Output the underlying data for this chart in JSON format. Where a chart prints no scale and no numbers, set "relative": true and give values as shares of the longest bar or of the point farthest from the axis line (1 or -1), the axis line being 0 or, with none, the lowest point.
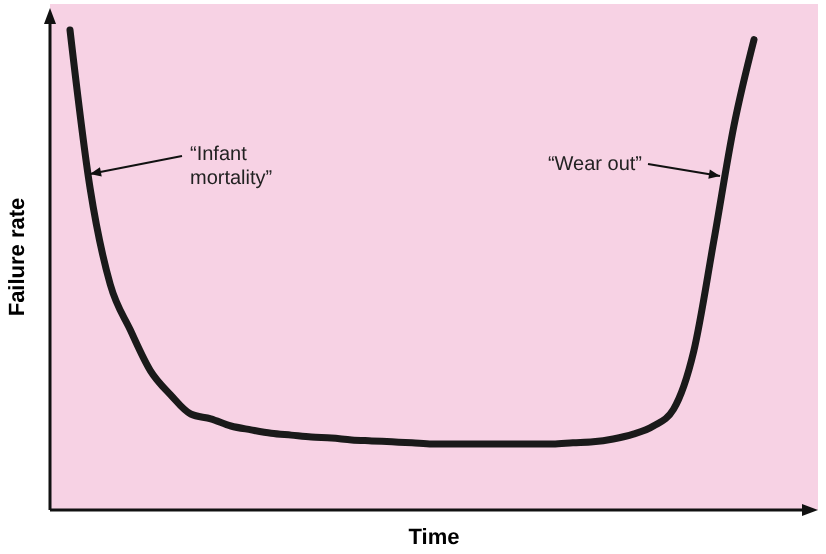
{
  "chart_data": {
    "type": "line",
    "relative": true,
    "xlabel": "Time",
    "ylabel": "Failure rate",
    "annotations": [
      "“Infant\nmortality”",
      "“Wear out”"
    ],
    "categories": [
      null,
      null,
      null,
      null,
      null,
      null,
      null,
      null,
      null,
      null,
      null,
      null,
      null,
      null,
      null,
      null,
      null,
      null,
      null,
      null,
      null,
      null,
      null,
      null,
      null,
      null,
      null,
      null,
      null,
      null,
      null,
      null,
      null,
      null,
      null
    ],
    "series": [
      {
        "color": "#1a1a1a",
        "values": [
          1,
          0.67,
          0.47,
          0.375,
          0.29,
          0.24,
          0.2,
          0.19,
          0.175,
          0.167,
          0.16,
          0.156,
          0.152,
          0.15,
          0.146,
          0.144,
          0.142,
          0.14,
          0.1375,
          0.1375,
          0.1375,
          0.1375,
          0.1375,
          0.1375,
          0.1375,
          0.14,
          0.142,
          0.148,
          0.158,
          0.175,
          0.21,
          0.33,
          0.56,
          0.8,
          0.98
        ]
      }
    ]
  }
}
